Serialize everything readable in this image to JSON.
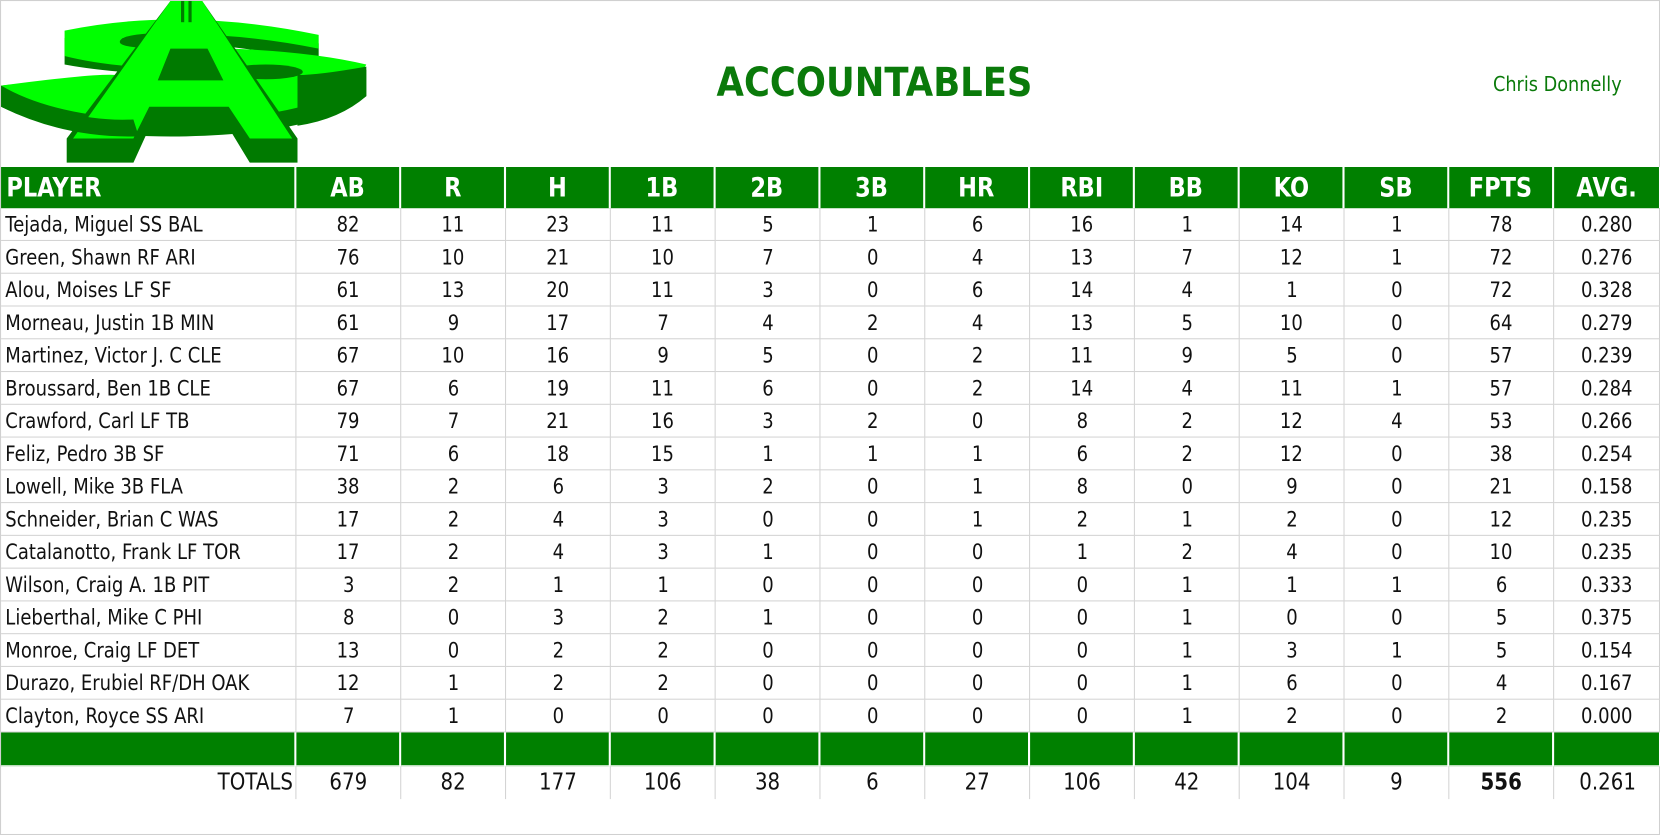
{
  "header": {
    "title": "ACCOUNTABLES",
    "owner": "Chris Donnelly",
    "logo": "green-dollar-A-logo"
  },
  "colors": {
    "header_green": "#008000",
    "title_green": "#0a7a0a",
    "logo_light": "#00ff00",
    "logo_dark": "#007a00"
  },
  "table": {
    "columns": [
      "PLAYER",
      "AB",
      "R",
      "H",
      "1B",
      "2B",
      "3B",
      "HR",
      "RBI",
      "BB",
      "KO",
      "SB",
      "FPTS",
      "AVG."
    ],
    "rows": [
      [
        "Tejada, Miguel SS BAL",
        "82",
        "11",
        "23",
        "11",
        "5",
        "1",
        "6",
        "16",
        "1",
        "14",
        "1",
        "78",
        "0.280"
      ],
      [
        "Green, Shawn RF ARI",
        "76",
        "10",
        "21",
        "10",
        "7",
        "0",
        "4",
        "13",
        "7",
        "12",
        "1",
        "72",
        "0.276"
      ],
      [
        "Alou, Moises LF SF",
        "61",
        "13",
        "20",
        "11",
        "3",
        "0",
        "6",
        "14",
        "4",
        "1",
        "0",
        "72",
        "0.328"
      ],
      [
        "Morneau, Justin 1B MIN",
        "61",
        "9",
        "17",
        "7",
        "4",
        "2",
        "4",
        "13",
        "5",
        "10",
        "0",
        "64",
        "0.279"
      ],
      [
        "Martinez, Victor J. C CLE",
        "67",
        "10",
        "16",
        "9",
        "5",
        "0",
        "2",
        "11",
        "9",
        "5",
        "0",
        "57",
        "0.239"
      ],
      [
        "Broussard, Ben 1B CLE",
        "67",
        "6",
        "19",
        "11",
        "6",
        "0",
        "2",
        "14",
        "4",
        "11",
        "1",
        "57",
        "0.284"
      ],
      [
        "Crawford, Carl LF TB",
        "79",
        "7",
        "21",
        "16",
        "3",
        "2",
        "0",
        "8",
        "2",
        "12",
        "4",
        "53",
        "0.266"
      ],
      [
        "Feliz, Pedro 3B SF",
        "71",
        "6",
        "18",
        "15",
        "1",
        "1",
        "1",
        "6",
        "2",
        "12",
        "0",
        "38",
        "0.254"
      ],
      [
        "Lowell, Mike 3B FLA",
        "38",
        "2",
        "6",
        "3",
        "2",
        "0",
        "1",
        "8",
        "0",
        "9",
        "0",
        "21",
        "0.158"
      ],
      [
        "Schneider, Brian C WAS",
        "17",
        "2",
        "4",
        "3",
        "0",
        "0",
        "1",
        "2",
        "1",
        "2",
        "0",
        "12",
        "0.235"
      ],
      [
        "Catalanotto, Frank LF TOR",
        "17",
        "2",
        "4",
        "3",
        "1",
        "0",
        "0",
        "1",
        "2",
        "4",
        "0",
        "10",
        "0.235"
      ],
      [
        "Wilson, Craig A. 1B PIT",
        "3",
        "2",
        "1",
        "1",
        "0",
        "0",
        "0",
        "0",
        "1",
        "1",
        "1",
        "6",
        "0.333"
      ],
      [
        "Lieberthal, Mike C PHI",
        "8",
        "0",
        "3",
        "2",
        "1",
        "0",
        "0",
        "0",
        "1",
        "0",
        "0",
        "5",
        "0.375"
      ],
      [
        "Monroe, Craig LF DET",
        "13",
        "0",
        "2",
        "2",
        "0",
        "0",
        "0",
        "0",
        "1",
        "3",
        "1",
        "5",
        "0.154"
      ],
      [
        "Durazo, Erubiel RF/DH OAK",
        "12",
        "1",
        "2",
        "2",
        "0",
        "0",
        "0",
        "0",
        "1",
        "6",
        "0",
        "4",
        "0.167"
      ],
      [
        "Clayton, Royce SS ARI",
        "7",
        "1",
        "0",
        "0",
        "0",
        "0",
        "0",
        "0",
        "1",
        "2",
        "0",
        "2",
        "0.000"
      ]
    ],
    "totals": [
      "TOTALS",
      "679",
      "82",
      "177",
      "106",
      "38",
      "6",
      "27",
      "106",
      "42",
      "104",
      "9",
      "556",
      "0.261"
    ]
  }
}
